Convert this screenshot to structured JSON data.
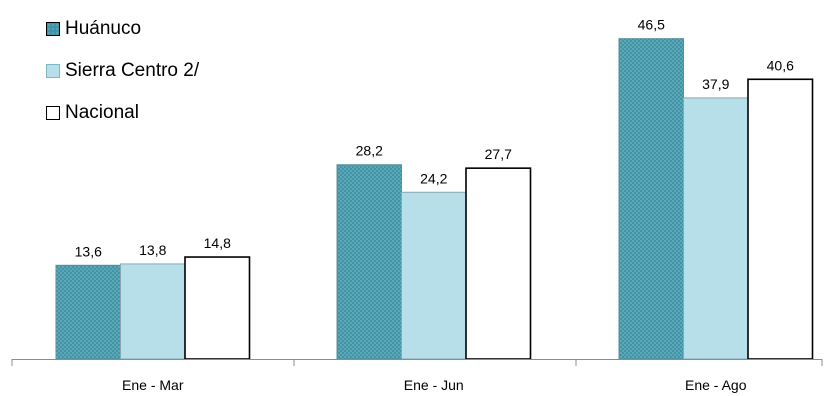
{
  "chart_data": {
    "type": "bar",
    "categories": [
      "Ene - Mar",
      "Ene - Jun",
      "Ene - Ago"
    ],
    "series": [
      {
        "name": "Huánuco",
        "values": [
          13.6,
          28.2,
          46.5
        ],
        "labels": [
          "13,6",
          "28,2",
          "46,5"
        ],
        "color": "#4aa0b0"
      },
      {
        "name": "Sierra Centro 2/",
        "values": [
          13.8,
          24.2,
          37.9
        ],
        "labels": [
          "13,8",
          "24,2",
          "37,9"
        ],
        "color": "#b7dfea"
      },
      {
        "name": "Nacional",
        "values": [
          14.8,
          27.7,
          40.6
        ],
        "labels": [
          "14,8",
          "27,7",
          "40,6"
        ],
        "color": "#ffffff"
      }
    ],
    "ylim": [
      0,
      50
    ],
    "grid": false,
    "legend_position": "top-left"
  }
}
